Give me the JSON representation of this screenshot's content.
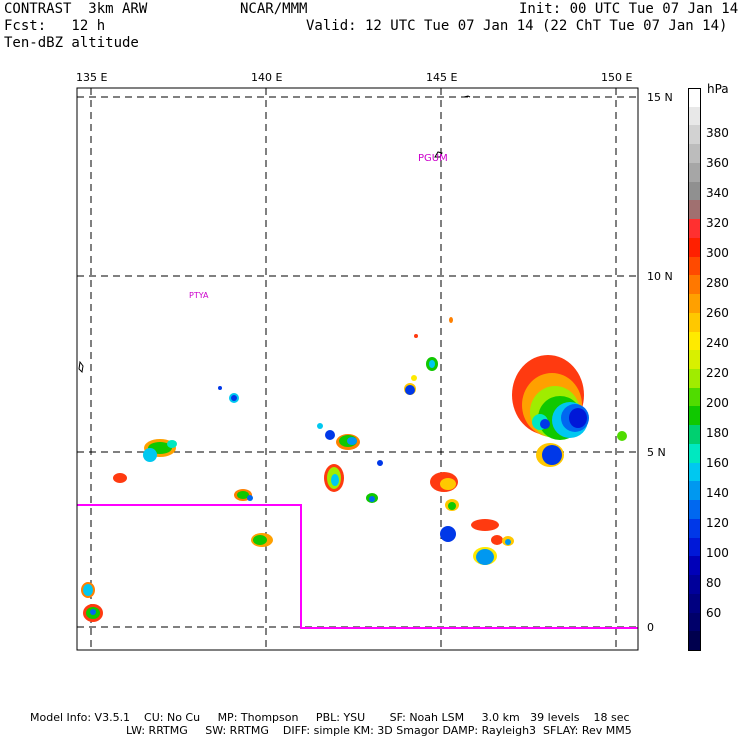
{
  "header": {
    "model": "CONTRAST  3km ARW",
    "fcst": "Fcst:   12 h",
    "field": "Ten-dBZ altitude",
    "institution": "NCAR/MMM",
    "init": "Init: 00 UTC Tue 07 Jan 14",
    "valid": "Valid: 12 UTC Tue 07 Jan 14 (22 ChT Tue 07 Jan 14)"
  },
  "map": {
    "lon_labels": [
      "135 E",
      "140 E",
      "145 E",
      "150 E"
    ],
    "lat_labels": [
      "15 N",
      "10 N",
      "5 N",
      "0"
    ],
    "lon_range": [
      134.6,
      150.8
    ],
    "lat_range": [
      -0.6,
      15.4
    ],
    "station_labels": [
      "PGUM",
      "PTYA"
    ],
    "domain_boundary_color": "#ff00ff"
  },
  "colorbar": {
    "unit": "hPa",
    "labels": [
      "380",
      "360",
      "340",
      "320",
      "300",
      "280",
      "260",
      "240",
      "220",
      "200",
      "180",
      "160",
      "140",
      "120",
      "100",
      "80",
      "60"
    ],
    "colors": [
      "#ffffff",
      "#e8e8e8",
      "#d2d2d2",
      "#bcbcbc",
      "#a6a6a6",
      "#909090",
      "#a07070",
      "#ff3030",
      "#ff2000",
      "#ff4a00",
      "#ff7800",
      "#ffa000",
      "#ffc800",
      "#ffea00",
      "#d8f000",
      "#a0ec00",
      "#50dc00",
      "#10c800",
      "#00d070",
      "#00e8c0",
      "#00c8f0",
      "#0098f0",
      "#0068f0",
      "#0038e8",
      "#0018d8",
      "#0000b8",
      "#00009a",
      "#000080",
      "#00006a",
      "#00004e"
    ]
  },
  "footer": {
    "line1": "Model Info: V3.5.1    CU: No Cu     MP: Thompson     PBL: YSU       SF: Noah LSM     3.0 km   39 levels    18 sec",
    "line2": "LW: RRTMG     SW: RRTMG    DIFF: simple KM: 3D Smagor DAMP: Rayleigh3  SFLAY: Rev MM5"
  }
}
